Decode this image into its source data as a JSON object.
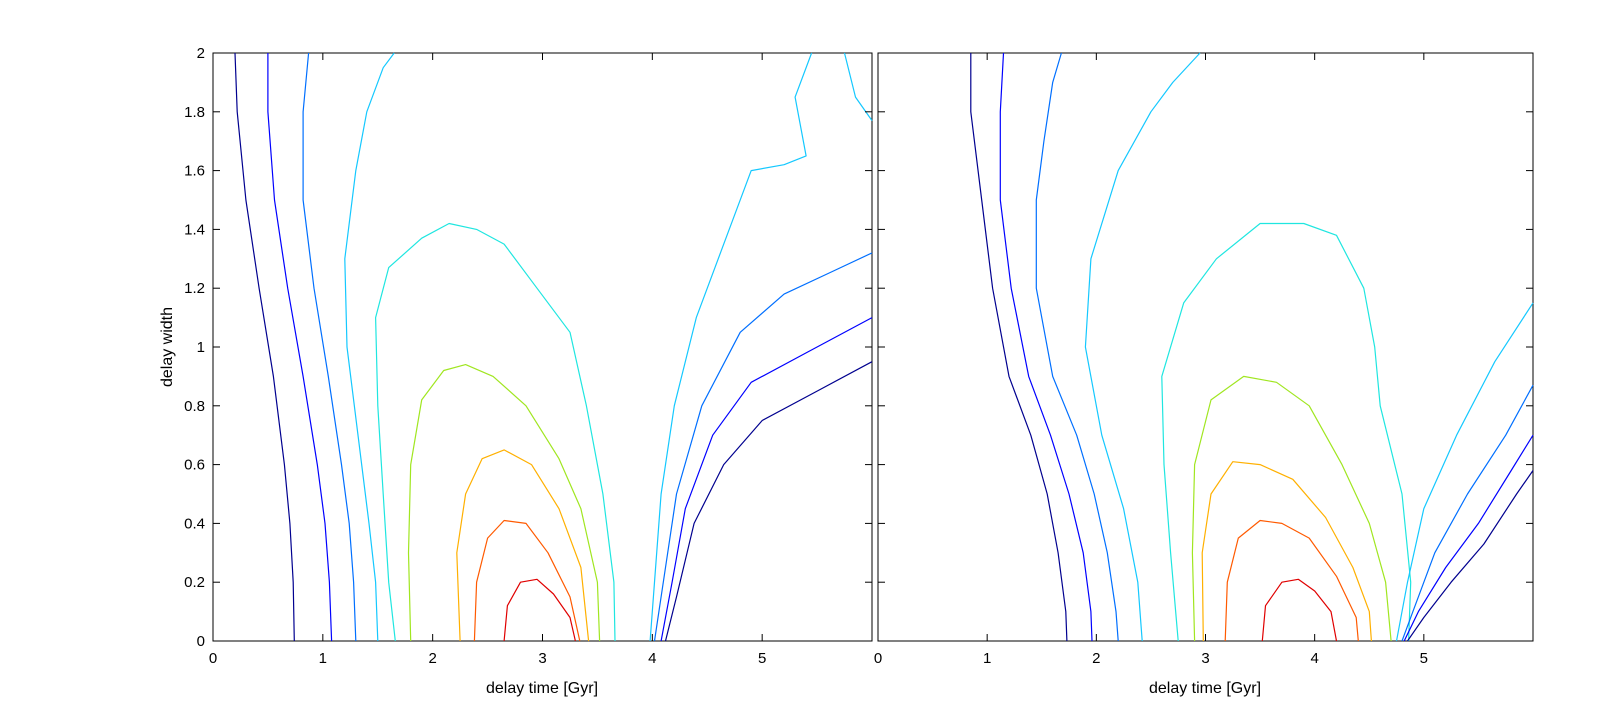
{
  "chart_data": [
    {
      "type": "contour",
      "title": "",
      "xlabel": "",
      "ylabel": "delay width",
      "xlim": [
        0,
        6
      ],
      "ylim": [
        0,
        2
      ],
      "xticks": [
        "0",
        "1",
        "2",
        "3",
        "4",
        "5"
      ],
      "yticks": [
        "0",
        "0.2",
        "0.4",
        "0.6",
        "0.8",
        "1",
        "1.2",
        "1.4",
        "1.6",
        "1.8",
        "2"
      ],
      "grid": false,
      "legend": "none",
      "contours": [
        {
          "color": "#00008f",
          "points": [
            [
              0.2,
              2
            ],
            [
              0.22,
              1.8
            ],
            [
              0.3,
              1.5
            ],
            [
              0.42,
              1.2
            ],
            [
              0.55,
              0.9
            ],
            [
              0.65,
              0.6
            ],
            [
              0.7,
              0.4
            ],
            [
              0.73,
              0.2
            ],
            [
              0.74,
              0
            ]
          ]
        },
        {
          "color": "#0000ff",
          "points": [
            [
              0.5,
              2
            ],
            [
              0.5,
              1.8
            ],
            [
              0.56,
              1.5
            ],
            [
              0.68,
              1.2
            ],
            [
              0.82,
              0.9
            ],
            [
              0.95,
              0.6
            ],
            [
              1.02,
              0.4
            ],
            [
              1.06,
              0.2
            ],
            [
              1.08,
              0
            ]
          ]
        },
        {
          "color": "#006fff",
          "points": [
            [
              0.87,
              2
            ],
            [
              0.82,
              1.8
            ],
            [
              0.82,
              1.5
            ],
            [
              0.92,
              1.2
            ],
            [
              1.05,
              0.9
            ],
            [
              1.17,
              0.6
            ],
            [
              1.24,
              0.4
            ],
            [
              1.28,
              0.2
            ],
            [
              1.3,
              0
            ]
          ]
        },
        {
          "color": "#14c8ff",
          "points": [
            [
              1.65,
              2
            ],
            [
              1.55,
              1.95
            ],
            [
              1.4,
              1.8
            ],
            [
              1.3,
              1.6
            ],
            [
              1.2,
              1.3
            ],
            [
              1.22,
              1.0
            ],
            [
              1.32,
              0.7
            ],
            [
              1.42,
              0.4
            ],
            [
              1.48,
              0.2
            ],
            [
              1.5,
              0
            ]
          ]
        },
        {
          "color": "#1fe6e0",
          "points": [
            [
              1.66,
              0
            ],
            [
              1.6,
              0.2
            ],
            [
              1.55,
              0.5
            ],
            [
              1.5,
              0.8
            ],
            [
              1.48,
              1.1
            ],
            [
              1.6,
              1.27
            ],
            [
              1.9,
              1.37
            ],
            [
              2.15,
              1.42
            ],
            [
              2.4,
              1.4
            ],
            [
              2.65,
              1.35
            ],
            [
              2.95,
              1.2
            ],
            [
              3.25,
              1.05
            ],
            [
              3.4,
              0.8
            ],
            [
              3.55,
              0.5
            ],
            [
              3.65,
              0.2
            ],
            [
              3.66,
              0
            ]
          ]
        },
        {
          "color": "#14c8ff",
          "points": [
            [
              3.98,
              0
            ],
            [
              4.02,
              0.2
            ],
            [
              4.08,
              0.5
            ],
            [
              4.2,
              0.8
            ],
            [
              4.4,
              1.1
            ],
            [
              4.7,
              1.4
            ],
            [
              4.9,
              1.6
            ],
            [
              5.2,
              1.62
            ],
            [
              5.4,
              1.65
            ],
            [
              5.3,
              1.85
            ],
            [
              5.45,
              2
            ]
          ]
        },
        {
          "color": "#14c8ff",
          "points": [
            [
              5.75,
              2
            ],
            [
              5.85,
              1.85
            ],
            [
              6,
              1.77
            ]
          ]
        },
        {
          "color": "#006fff",
          "points": [
            [
              4.02,
              0
            ],
            [
              4.1,
              0.2
            ],
            [
              4.22,
              0.5
            ],
            [
              4.45,
              0.8
            ],
            [
              4.8,
              1.05
            ],
            [
              5.2,
              1.18
            ],
            [
              5.6,
              1.25
            ],
            [
              6,
              1.32
            ]
          ]
        },
        {
          "color": "#0000ff",
          "points": [
            [
              4.08,
              0
            ],
            [
              4.18,
              0.2
            ],
            [
              4.3,
              0.45
            ],
            [
              4.55,
              0.7
            ],
            [
              4.9,
              0.88
            ],
            [
              5.4,
              0.98
            ],
            [
              6,
              1.1
            ]
          ]
        },
        {
          "color": "#00008f",
          "points": [
            [
              4.12,
              0
            ],
            [
              4.22,
              0.15
            ],
            [
              4.38,
              0.4
            ],
            [
              4.65,
              0.6
            ],
            [
              5.0,
              0.75
            ],
            [
              5.5,
              0.85
            ],
            [
              6,
              0.95
            ]
          ]
        },
        {
          "color": "#a0e620",
          "points": [
            [
              1.8,
              0
            ],
            [
              1.78,
              0.3
            ],
            [
              1.8,
              0.6
            ],
            [
              1.9,
              0.82
            ],
            [
              2.1,
              0.92
            ],
            [
              2.3,
              0.94
            ],
            [
              2.55,
              0.9
            ],
            [
              2.85,
              0.8
            ],
            [
              3.15,
              0.62
            ],
            [
              3.35,
              0.45
            ],
            [
              3.5,
              0.2
            ],
            [
              3.52,
              0
            ]
          ]
        },
        {
          "color": "#ffb000",
          "points": [
            [
              2.25,
              0
            ],
            [
              2.22,
              0.3
            ],
            [
              2.3,
              0.5
            ],
            [
              2.45,
              0.62
            ],
            [
              2.65,
              0.65
            ],
            [
              2.9,
              0.6
            ],
            [
              3.15,
              0.45
            ],
            [
              3.35,
              0.25
            ],
            [
              3.42,
              0
            ]
          ]
        },
        {
          "color": "#ff5a00",
          "points": [
            [
              2.38,
              0
            ],
            [
              2.4,
              0.2
            ],
            [
              2.5,
              0.35
            ],
            [
              2.65,
              0.41
            ],
            [
              2.85,
              0.4
            ],
            [
              3.05,
              0.3
            ],
            [
              3.25,
              0.15
            ],
            [
              3.34,
              0
            ]
          ]
        },
        {
          "color": "#e00000",
          "points": [
            [
              2.65,
              0
            ],
            [
              2.68,
              0.12
            ],
            [
              2.8,
              0.2
            ],
            [
              2.95,
              0.21
            ],
            [
              3.1,
              0.16
            ],
            [
              3.25,
              0.08
            ],
            [
              3.3,
              0
            ]
          ]
        }
      ]
    },
    {
      "type": "contour",
      "title": "",
      "xlabel": "delay time [Gyr]",
      "ylabel": "",
      "xlim": [
        0,
        6
      ],
      "ylim": [
        0,
        2
      ],
      "xticks": [
        "0",
        "1",
        "2",
        "3",
        "4",
        "5"
      ],
      "yticks": [],
      "grid": false,
      "legend": "none",
      "contours": [
        {
          "color": "#00008f",
          "points": [
            [
              0.85,
              2
            ],
            [
              0.85,
              1.8
            ],
            [
              0.95,
              1.5
            ],
            [
              1.05,
              1.2
            ],
            [
              1.2,
              0.9
            ],
            [
              1.4,
              0.7
            ],
            [
              1.55,
              0.5
            ],
            [
              1.65,
              0.3
            ],
            [
              1.72,
              0.1
            ],
            [
              1.73,
              0
            ]
          ]
        },
        {
          "color": "#0000ff",
          "points": [
            [
              1.15,
              2
            ],
            [
              1.12,
              1.8
            ],
            [
              1.12,
              1.5
            ],
            [
              1.22,
              1.2
            ],
            [
              1.38,
              0.9
            ],
            [
              1.58,
              0.7
            ],
            [
              1.75,
              0.5
            ],
            [
              1.88,
              0.3
            ],
            [
              1.95,
              0.1
            ],
            [
              1.96,
              0
            ]
          ]
        },
        {
          "color": "#006fff",
          "points": [
            [
              1.68,
              2
            ],
            [
              1.6,
              1.9
            ],
            [
              1.52,
              1.7
            ],
            [
              1.45,
              1.5
            ],
            [
              1.45,
              1.2
            ],
            [
              1.6,
              0.9
            ],
            [
              1.82,
              0.7
            ],
            [
              1.98,
              0.5
            ],
            [
              2.1,
              0.3
            ],
            [
              2.18,
              0.1
            ],
            [
              2.2,
              0
            ]
          ]
        },
        {
          "color": "#14c8ff",
          "points": [
            [
              2.95,
              2
            ],
            [
              2.7,
              1.9
            ],
            [
              2.5,
              1.8
            ],
            [
              2.2,
              1.6
            ],
            [
              1.95,
              1.3
            ],
            [
              1.9,
              1.0
            ],
            [
              2.05,
              0.7
            ],
            [
              2.25,
              0.45
            ],
            [
              2.38,
              0.2
            ],
            [
              2.42,
              0
            ]
          ]
        },
        {
          "color": "#1fe6e0",
          "points": [
            [
              2.75,
              0
            ],
            [
              2.68,
              0.3
            ],
            [
              2.62,
              0.6
            ],
            [
              2.6,
              0.9
            ],
            [
              2.8,
              1.15
            ],
            [
              3.1,
              1.3
            ],
            [
              3.5,
              1.42
            ],
            [
              3.9,
              1.42
            ],
            [
              4.2,
              1.38
            ],
            [
              4.45,
              1.2
            ],
            [
              4.55,
              1.0
            ],
            [
              4.6,
              0.8
            ],
            [
              4.8,
              0.5
            ],
            [
              4.88,
              0.2
            ],
            [
              4.86,
              0
            ]
          ]
        },
        {
          "color": "#14c8ff",
          "points": [
            [
              4.75,
              0
            ],
            [
              4.85,
              0.2
            ],
            [
              5.0,
              0.45
            ],
            [
              5.3,
              0.7
            ],
            [
              5.65,
              0.95
            ],
            [
              6,
              1.15
            ]
          ]
        },
        {
          "color": "#006fff",
          "points": [
            [
              4.8,
              0
            ],
            [
              4.9,
              0.1
            ],
            [
              5.1,
              0.3
            ],
            [
              5.4,
              0.5
            ],
            [
              5.75,
              0.7
            ],
            [
              6,
              0.87
            ]
          ]
        },
        {
          "color": "#0000ff",
          "points": [
            [
              4.82,
              0
            ],
            [
              4.95,
              0.1
            ],
            [
              5.2,
              0.25
            ],
            [
              5.5,
              0.4
            ],
            [
              5.8,
              0.58
            ],
            [
              6,
              0.7
            ]
          ]
        },
        {
          "color": "#00008f",
          "points": [
            [
              4.85,
              0
            ],
            [
              5.0,
              0.08
            ],
            [
              5.25,
              0.2
            ],
            [
              5.55,
              0.33
            ],
            [
              5.85,
              0.5
            ],
            [
              6,
              0.58
            ]
          ]
        },
        {
          "color": "#a0e620",
          "points": [
            [
              2.9,
              0
            ],
            [
              2.88,
              0.3
            ],
            [
              2.9,
              0.6
            ],
            [
              3.05,
              0.82
            ],
            [
              3.35,
              0.9
            ],
            [
              3.65,
              0.88
            ],
            [
              3.95,
              0.8
            ],
            [
              4.25,
              0.6
            ],
            [
              4.5,
              0.4
            ],
            [
              4.65,
              0.2
            ],
            [
              4.7,
              0
            ]
          ]
        },
        {
          "color": "#ffb000",
          "points": [
            [
              2.98,
              0
            ],
            [
              2.97,
              0.3
            ],
            [
              3.05,
              0.5
            ],
            [
              3.25,
              0.61
            ],
            [
              3.5,
              0.6
            ],
            [
              3.8,
              0.55
            ],
            [
              4.1,
              0.42
            ],
            [
              4.35,
              0.25
            ],
            [
              4.5,
              0.1
            ],
            [
              4.52,
              0
            ]
          ]
        },
        {
          "color": "#ff5a00",
          "points": [
            [
              3.18,
              0
            ],
            [
              3.2,
              0.2
            ],
            [
              3.3,
              0.35
            ],
            [
              3.5,
              0.41
            ],
            [
              3.7,
              0.4
            ],
            [
              3.95,
              0.35
            ],
            [
              4.2,
              0.22
            ],
            [
              4.38,
              0.08
            ],
            [
              4.4,
              0
            ]
          ]
        },
        {
          "color": "#e00000",
          "points": [
            [
              3.52,
              0
            ],
            [
              3.55,
              0.12
            ],
            [
              3.7,
              0.2
            ],
            [
              3.85,
              0.21
            ],
            [
              4.0,
              0.17
            ],
            [
              4.15,
              0.1
            ],
            [
              4.2,
              0
            ]
          ]
        }
      ]
    }
  ],
  "left_panel": {
    "xlabel": "delay time [Gyr]"
  }
}
